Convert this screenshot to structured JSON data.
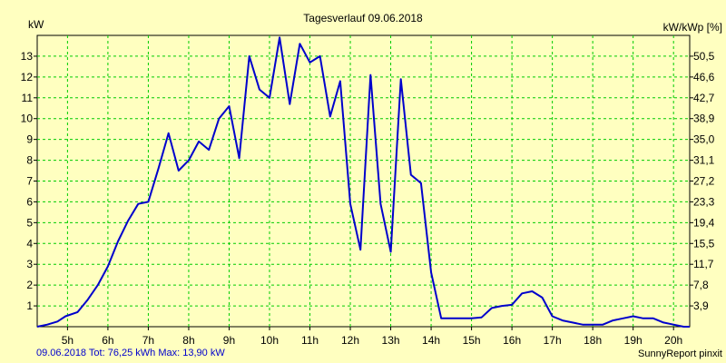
{
  "chart_data": {
    "type": "line",
    "title": "Tagesverlauf 09.06.2018",
    "ylabel": "kW",
    "y2label": "kW/kWp [%]",
    "ylim": [
      0,
      14
    ],
    "xlim": [
      4.25,
      20.4
    ],
    "grid": true,
    "line_color": "#0000cc",
    "grid_color": "#00cc00",
    "y_ticks": [
      "1",
      "2",
      "3",
      "4",
      "5",
      "6",
      "7",
      "8",
      "9",
      "10",
      "11",
      "12",
      "13"
    ],
    "y2_ticks": [
      "3,9",
      "7,8",
      "11,7",
      "15,5",
      "19,4",
      "23,3",
      "27,2",
      "31,1",
      "35,0",
      "38,9",
      "42,7",
      "46,6",
      "50,5"
    ],
    "x_ticks": [
      "5h",
      "6h",
      "7h",
      "8h",
      "9h",
      "10h",
      "11h",
      "12h",
      "13h",
      "14h",
      "15h",
      "16h",
      "17h",
      "18h",
      "19h",
      "20h"
    ],
    "series": [
      {
        "x": [
          4.25,
          4.5,
          4.75,
          4.95,
          5.25,
          5.5,
          5.75,
          6.0,
          6.25,
          6.5,
          6.75,
          7.0,
          7.25,
          7.5,
          7.75,
          8.0,
          8.25,
          8.5,
          8.75,
          9.0,
          9.25,
          9.5,
          9.75,
          10.0,
          10.25,
          10.5,
          10.75,
          11.0,
          11.25,
          11.5,
          11.75,
          12.0,
          12.25,
          12.5,
          12.75,
          13.0,
          13.25,
          13.5,
          13.75,
          14.0,
          14.25,
          14.5,
          14.75,
          15.0,
          15.25,
          15.5,
          15.75,
          16.0,
          16.25,
          16.5,
          16.75,
          17.0,
          17.25,
          17.5,
          17.75,
          18.0,
          18.25,
          18.5,
          18.75,
          19.0,
          19.25,
          19.5,
          19.75,
          20.0,
          20.25,
          20.4
        ],
        "y": [
          0.0,
          0.1,
          0.25,
          0.5,
          0.7,
          1.3,
          2.0,
          2.9,
          4.1,
          5.1,
          5.9,
          6.0,
          7.6,
          9.3,
          7.5,
          8.0,
          8.9,
          8.5,
          10.0,
          10.6,
          8.1,
          13.0,
          11.4,
          11.0,
          13.9,
          10.7,
          13.6,
          12.7,
          13.0,
          10.1,
          11.8,
          5.9,
          3.7,
          12.1,
          5.9,
          3.6,
          11.9,
          7.3,
          6.9,
          2.6,
          0.4,
          0.4,
          0.4,
          0.4,
          0.45,
          0.9,
          1.0,
          1.05,
          1.6,
          1.7,
          1.4,
          0.5,
          0.3,
          0.2,
          0.1,
          0.1,
          0.1,
          0.3,
          0.4,
          0.5,
          0.4,
          0.4,
          0.2,
          0.1,
          0.0,
          0.0
        ]
      }
    ]
  },
  "footer": {
    "left": "09.06.2018 Tot: 76,25 kWh Max: 13,90 kW",
    "right": "SunnyReport pinxit"
  }
}
